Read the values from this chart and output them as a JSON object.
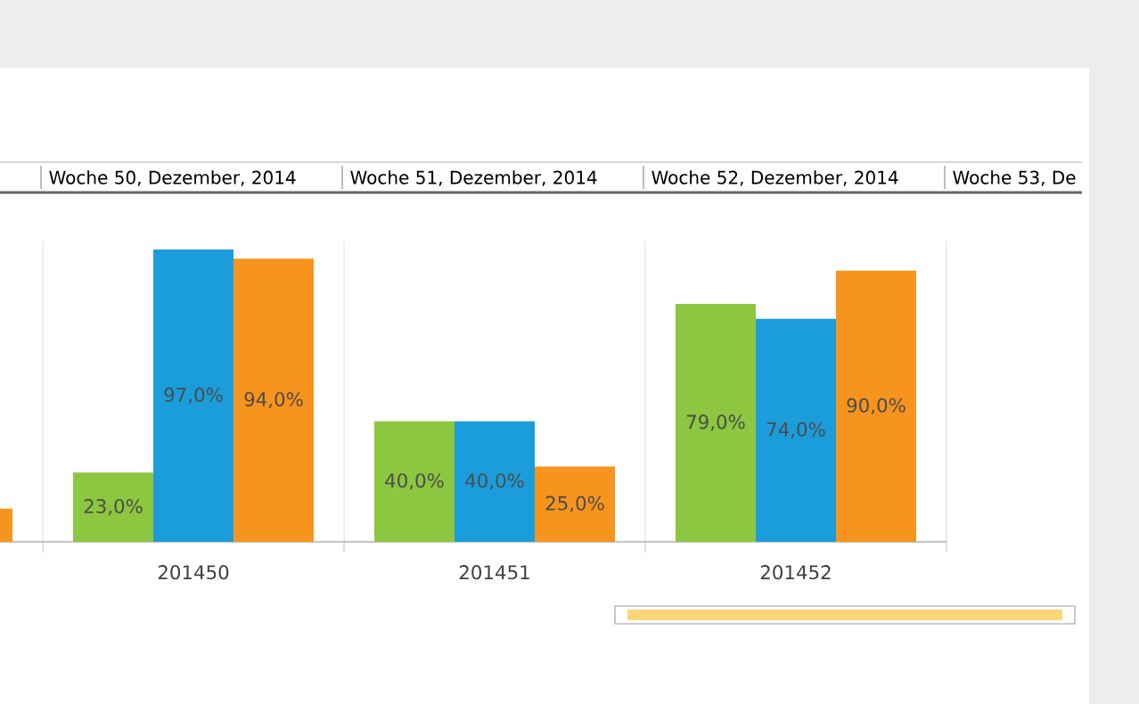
{
  "chart_data": {
    "type": "bar",
    "categories": [
      null,
      "201450",
      "201451",
      "201452"
    ],
    "series": [
      {
        "color": "#8dc63f",
        "values": [
          null,
          23,
          40,
          79
        ],
        "value_labels": [
          null,
          "23,0%",
          "40,0%",
          "79,0%"
        ]
      },
      {
        "color": "#1b9ddb",
        "values": [
          null,
          97,
          40,
          74
        ],
        "value_labels": [
          null,
          "97,0%",
          "40,0%",
          "74,0%"
        ]
      },
      {
        "color": "#f7941d",
        "values": [
          11,
          94,
          25,
          90
        ],
        "value_labels": [
          null,
          "94,0%",
          "25,0%",
          "90,0%"
        ]
      }
    ],
    "ylim": [
      0,
      100
    ],
    "grid": "x",
    "annotations": [
      "Woche 50, Dezember, 2014",
      "Woche 51, Dezember, 2014",
      "Woche 52, Dezember, 2014",
      "Woche 53, De"
    ]
  }
}
